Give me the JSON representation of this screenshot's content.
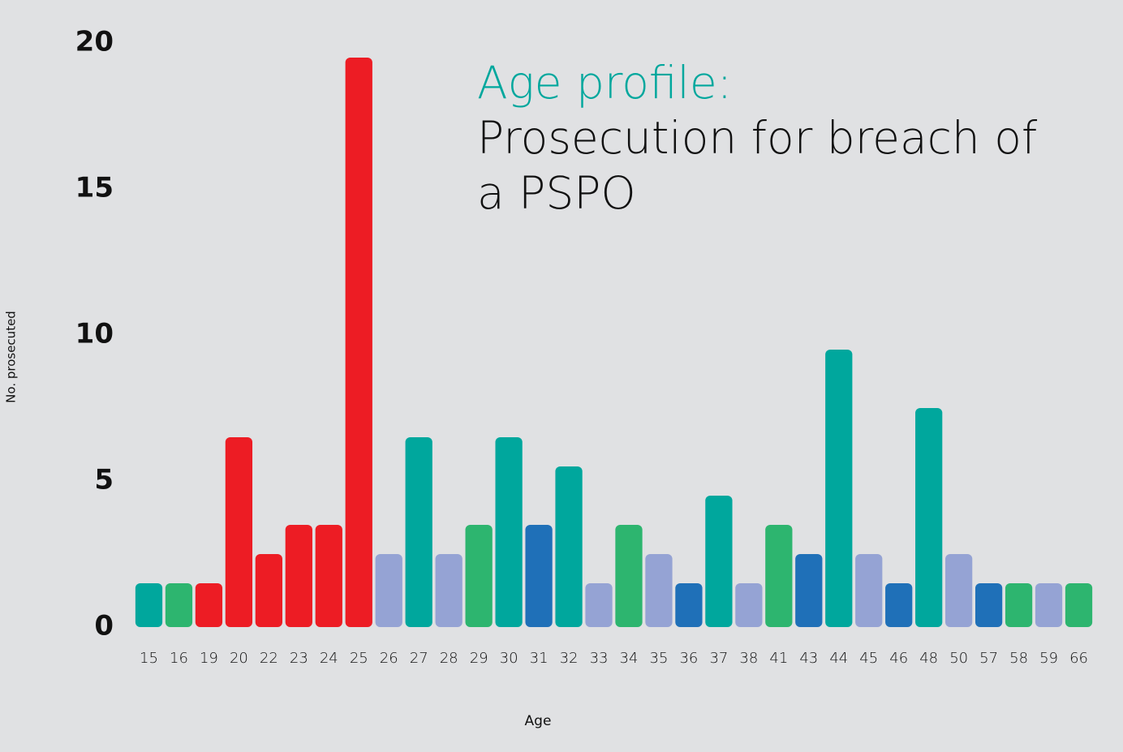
{
  "chart_data": {
    "type": "bar",
    "title": "Age profile:",
    "subtitle": "Prosecution for breach of a PSPO",
    "x_label": "Age",
    "y_label": "No. prosecuted",
    "categories": [
      "15",
      "16",
      "19",
      "20",
      "22",
      "23",
      "24",
      "25",
      "26",
      "27",
      "28",
      "29",
      "30",
      "31",
      "32",
      "33",
      "34",
      "35",
      "36",
      "37",
      "38",
      "41",
      "43",
      "44",
      "45",
      "46",
      "48",
      "50",
      "57",
      "58",
      "59",
      "66"
    ],
    "values": [
      1.5,
      1.5,
      1.5,
      6.5,
      2.5,
      3.5,
      3.5,
      19.5,
      2.5,
      6.5,
      2.5,
      3.5,
      6.5,
      3.5,
      5.5,
      1.5,
      3.5,
      2.5,
      1.5,
      4.5,
      1.5,
      3.5,
      2.5,
      9.5,
      2.5,
      1.5,
      7.5,
      2.5,
      1.5,
      1.5,
      1.5,
      1.5
    ],
    "colors": [
      "#00a79d",
      "#2db56f",
      "#ed1c24",
      "#ed1c24",
      "#ed1c24",
      "#ed1c24",
      "#ed1c24",
      "#ed1c24",
      "#95a3d4",
      "#00a79d",
      "#95a3d4",
      "#2db56f",
      "#00a79d",
      "#1f70b8",
      "#00a79d",
      "#95a3d4",
      "#2db56f",
      "#95a3d4",
      "#1f70b8",
      "#00a79d",
      "#95a3d4",
      "#2db56f",
      "#1f70b8",
      "#00a79d",
      "#95a3d4",
      "#1f70b8",
      "#00a79d",
      "#95a3d4",
      "#1f70b8",
      "#2db56f",
      "#95a3d4",
      "#2db56f"
    ],
    "ylim": [
      0,
      20
    ],
    "yticks": [
      0,
      5,
      10,
      15,
      20
    ],
    "grid": false
  }
}
